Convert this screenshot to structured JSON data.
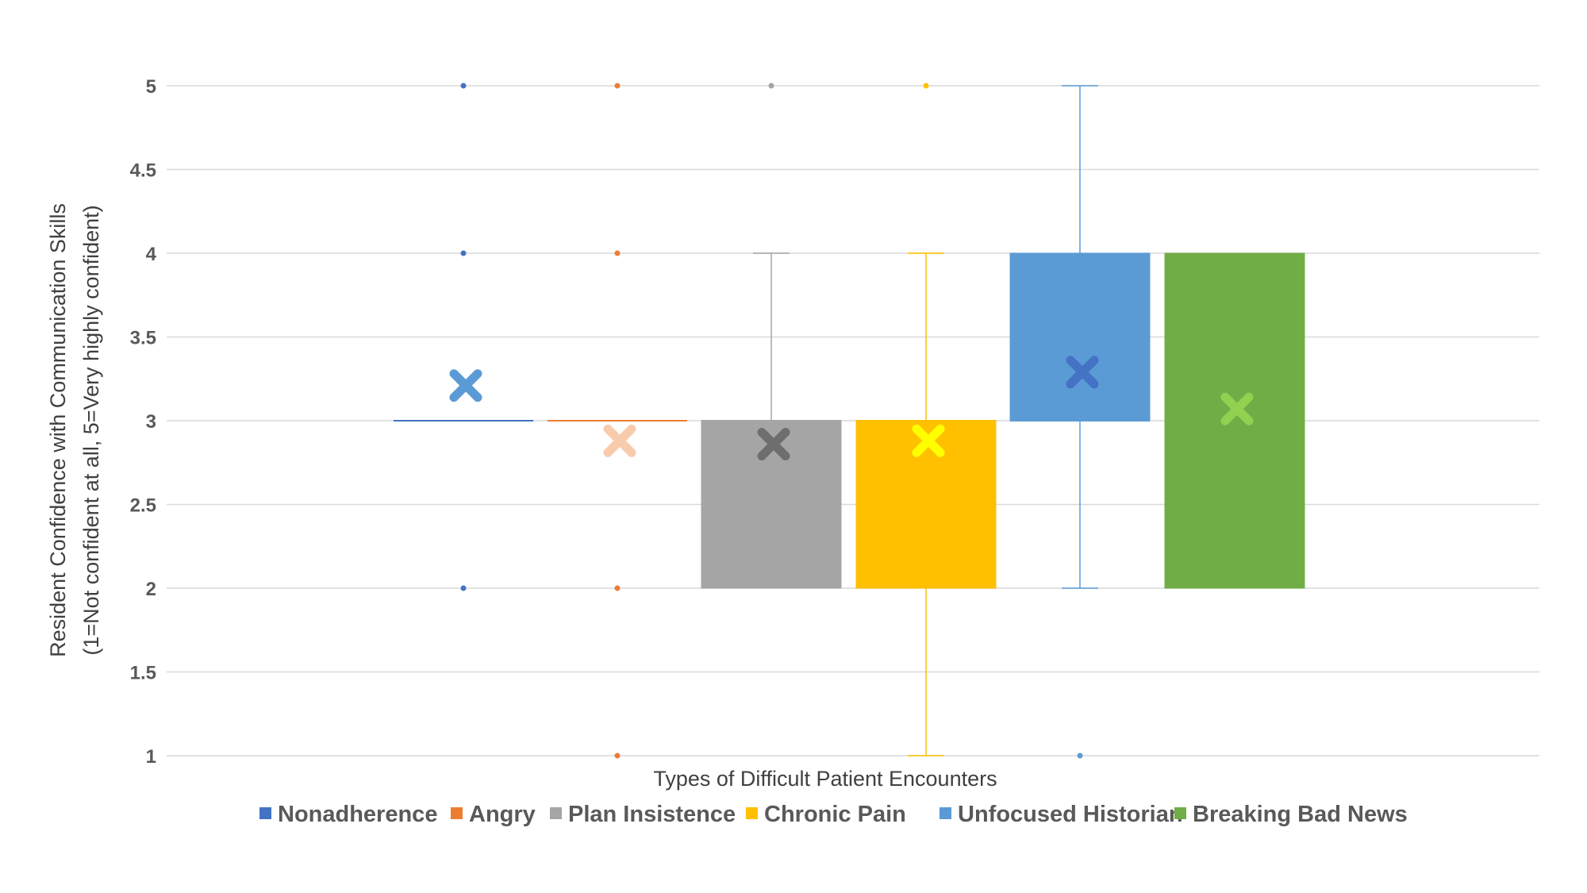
{
  "chart_data": {
    "type": "box",
    "title": "",
    "xlabel": "Types of Difficult Patient Encounters",
    "ylabel_line1": "Resident  Confidence with Communication Skills",
    "ylabel_line2": "(1=Not confident at all, 5=Very  highly confident)",
    "ylim": [
      1,
      5
    ],
    "yticks": [
      "1",
      "1.5",
      "2",
      "2.5",
      "3",
      "3.5",
      "4",
      "4.5",
      "5"
    ],
    "grid": true,
    "legend_position": "bottom",
    "series": [
      {
        "name": "Nonadherence",
        "color": "#4472C4",
        "box_color": "#4472C4",
        "mean_color": "#5B9BD5",
        "q1": 3,
        "median": 3,
        "q3": 3,
        "whisker_low": 3,
        "whisker_high": 3,
        "mean": 3.21,
        "outliers": [
          2,
          4,
          5
        ]
      },
      {
        "name": "Angry",
        "color": "#ED7D31",
        "box_color": "#ED7D31",
        "mean_color": "#F8CBAD",
        "q1": 3,
        "median": 3,
        "q3": 3,
        "whisker_low": 3,
        "whisker_high": 3,
        "mean": 2.88,
        "outliers": [
          1,
          2,
          4,
          5
        ]
      },
      {
        "name": "Plan Insistence",
        "color": "#A5A5A5",
        "box_color": "#A5A5A5",
        "mean_color": "#6E6E6E",
        "q1": 2,
        "median": 3,
        "q3": 3,
        "whisker_low": 2,
        "whisker_high": 4,
        "mean": 2.86,
        "outliers": [
          5
        ]
      },
      {
        "name": "Chronic Pain",
        "color": "#FFC000",
        "box_color": "#FFC000",
        "mean_color": "#FFFF00",
        "q1": 2,
        "median": 3,
        "q3": 3,
        "whisker_low": 1,
        "whisker_high": 4,
        "mean": 2.88,
        "outliers": [
          5
        ]
      },
      {
        "name": "Unfocused Historian",
        "color": "#5B9BD5",
        "box_color": "#5B9BD5",
        "mean_color": "#4472C4",
        "q1": 3,
        "median": 3,
        "q3": 4,
        "whisker_low": 2,
        "whisker_high": 5,
        "mean": 3.29,
        "outliers": [
          1
        ]
      },
      {
        "name": "Breaking Bad News",
        "color": "#70AD47",
        "box_color": "#70AD47",
        "mean_color": "#92D050",
        "q1": 2,
        "median": 3,
        "q3": 4,
        "whisker_low": 2,
        "whisker_high": 4,
        "mean": 3.07,
        "outliers": []
      }
    ]
  }
}
